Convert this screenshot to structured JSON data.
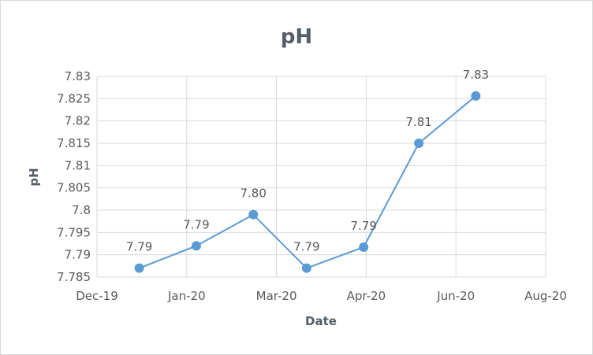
{
  "chart_data": {
    "type": "scatter",
    "title": "pH",
    "xlabel": "Date",
    "ylabel": "pH",
    "x_tick_labels": [
      "Dec-19",
      "Jan-20",
      "Mar-20",
      "Apr-20",
      "Jun-20",
      "Aug-20"
    ],
    "xlim": [
      "2019-12-01",
      "2020-08-01"
    ],
    "y_tick_labels": [
      "7.785",
      "7.79",
      "7.795",
      "7.8",
      "7.805",
      "7.81",
      "7.815",
      "7.82",
      "7.825",
      "7.83"
    ],
    "ylim": [
      7.785,
      7.83
    ],
    "grid": true,
    "legend": "none",
    "color": "#5b9bd5",
    "series": [
      {
        "x": [
          "2019-12-24",
          "2020-01-24",
          "2020-02-24",
          "2020-03-24",
          "2020-04-24",
          "2020-05-24",
          "2020-06-24"
        ],
        "y": [
          7.787,
          7.792,
          7.799,
          7.787,
          7.7917,
          7.815,
          7.8256
        ],
        "labels": [
          "7.79",
          "7.79",
          "7.80",
          "7.79",
          "7.79",
          "7.81",
          "7.83"
        ]
      }
    ]
  }
}
